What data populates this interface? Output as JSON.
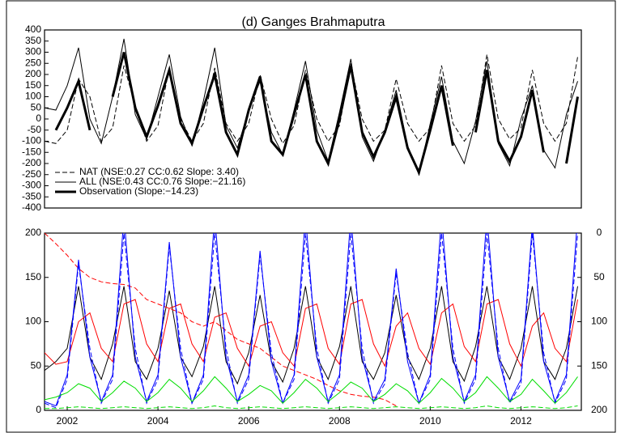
{
  "chart_data": [
    {
      "type": "line",
      "title": "(d) Ganges Brahmaputra",
      "x": [
        2001.5,
        2001.75,
        2002,
        2002.25,
        2002.5,
        2002.75,
        2003,
        2003.25,
        2003.5,
        2003.75,
        2004,
        2004.25,
        2004.5,
        2004.75,
        2005,
        2005.25,
        2005.5,
        2005.75,
        2006,
        2006.25,
        2006.5,
        2006.75,
        2007,
        2007.25,
        2007.5,
        2007.75,
        2008,
        2008.25,
        2008.5,
        2008.75,
        2009,
        2009.25,
        2009.5,
        2009.75,
        2010,
        2010.25,
        2010.5,
        2010.75,
        2011,
        2011.25,
        2011.5,
        2011.75,
        2012,
        2012.25,
        2012.5,
        2012.75,
        2013,
        2013.25
      ],
      "xlim": [
        2001.5,
        2013.33
      ],
      "ylim": [
        -400,
        400
      ],
      "yticks": [
        400,
        350,
        300,
        250,
        200,
        150,
        100,
        50,
        0,
        -50,
        -100,
        -150,
        -200,
        -250,
        -300,
        -350,
        -400
      ],
      "series": [
        {
          "name": "NAT (NSE:0.27 CC:0.62 Slope:  3.40)",
          "color": "#000000",
          "style": "dashed",
          "linewidth": 1,
          "values": [
            -100,
            -110,
            -50,
            180,
            100,
            -100,
            -40,
            240,
            60,
            -100,
            -30,
            230,
            0,
            -100,
            -20,
            230,
            -20,
            -100,
            -20,
            200,
            0,
            -110,
            -30,
            220,
            0,
            -100,
            -30,
            250,
            0,
            -100,
            -50,
            180,
            -20,
            -100,
            -40,
            240,
            -20,
            -100,
            -30,
            290,
            0,
            -90,
            -40,
            220,
            -20,
            -100,
            -20,
            280
          ]
        },
        {
          "name": "ALL (NSE:0.43 CC:0.76 Slope:−21.16)",
          "color": "#000000",
          "style": "solid",
          "linewidth": 1,
          "values": [
            50,
            40,
            150,
            320,
            0,
            -110,
            100,
            360,
            20,
            -90,
            100,
            290,
            10,
            -120,
            80,
            320,
            -30,
            -130,
            40,
            170,
            -60,
            -160,
            40,
            260,
            -50,
            -190,
            30,
            270,
            -80,
            -190,
            -50,
            130,
            -120,
            -250,
            -20,
            190,
            -100,
            -200,
            -10,
            260,
            -110,
            -210,
            0,
            150,
            -140,
            -220,
            20,
            170
          ]
        },
        {
          "name": "Observation (Slope:−14.23)",
          "color": "#000000",
          "style": "solid",
          "linewidth": 3,
          "values": [
            null,
            -50,
            50,
            170,
            -50,
            null,
            100,
            300,
            50,
            -80,
            60,
            220,
            -20,
            -110,
            50,
            200,
            -60,
            -160,
            40,
            190,
            -100,
            -160,
            20,
            200,
            -100,
            -200,
            0,
            240,
            -60,
            -170,
            -60,
            100,
            -130,
            -240,
            -50,
            150,
            -120,
            null,
            -60,
            220,
            -100,
            -190,
            -80,
            130,
            -150,
            null,
            -200,
            100
          ]
        }
      ]
    },
    {
      "type": "line",
      "x": [
        2001.5,
        2001.75,
        2002,
        2002.25,
        2002.5,
        2002.75,
        2003,
        2003.25,
        2003.5,
        2003.75,
        2004,
        2004.25,
        2004.5,
        2004.75,
        2005,
        2005.25,
        2005.5,
        2005.75,
        2006,
        2006.25,
        2006.5,
        2006.75,
        2007,
        2007.25,
        2007.5,
        2007.75,
        2008,
        2008.25,
        2008.5,
        2008.75,
        2009,
        2009.25,
        2009.5,
        2009.75,
        2010,
        2010.25,
        2010.5,
        2010.75,
        2011,
        2011.25,
        2011.5,
        2011.75,
        2012,
        2012.25,
        2012.5,
        2012.75,
        2013,
        2013.25
      ],
      "xlim": [
        2001.5,
        2013.33
      ],
      "xticks": [
        2002,
        2004,
        2006,
        2008,
        2010,
        2012
      ],
      "ylim": [
        0,
        200
      ],
      "yticks": [
        0,
        50,
        100,
        150,
        200
      ],
      "y2lim": [
        200,
        0
      ],
      "y2ticks": [
        0,
        50,
        100,
        150,
        200
      ],
      "series": [
        {
          "color": "#000000",
          "style": "solid",
          "linewidth": 1,
          "values": [
            45,
            55,
            70,
            140,
            60,
            35,
            75,
            140,
            55,
            35,
            70,
            135,
            60,
            38,
            72,
            140,
            55,
            30,
            65,
            130,
            55,
            32,
            70,
            140,
            60,
            35,
            72,
            140,
            55,
            35,
            65,
            130,
            60,
            35,
            70,
            140,
            55,
            33,
            72,
            140,
            60,
            35,
            70,
            140,
            55,
            35,
            70,
            140
          ]
        },
        {
          "color": "#ff0000",
          "style": "solid",
          "linewidth": 1,
          "values": [
            65,
            52,
            55,
            100,
            110,
            70,
            55,
            120,
            125,
            75,
            55,
            115,
            120,
            75,
            55,
            105,
            110,
            70,
            50,
            95,
            100,
            65,
            50,
            115,
            120,
            70,
            52,
            120,
            125,
            75,
            50,
            95,
            110,
            70,
            52,
            110,
            120,
            72,
            55,
            120,
            125,
            75,
            50,
            95,
            110,
            70,
            55,
            125
          ]
        },
        {
          "color": "#ff0000",
          "style": "dashed",
          "linewidth": 1,
          "values": [
            200,
            188,
            175,
            160,
            150,
            145,
            143,
            142,
            138,
            125,
            120,
            115,
            110,
            100,
            95,
            100,
            90,
            80,
            75,
            70,
            60,
            50,
            45,
            40,
            35,
            28,
            22,
            18,
            16,
            15,
            12,
            5,
            null,
            null,
            null,
            null,
            null,
            null,
            null,
            null,
            null,
            null,
            null,
            null,
            null,
            null,
            null,
            null
          ]
        },
        {
          "color": "#0000ff",
          "style": "solid",
          "linewidth": 1,
          "values": [
            10,
            5,
            40,
            170,
            60,
            10,
            40,
            220,
            60,
            10,
            40,
            190,
            60,
            8,
            40,
            220,
            60,
            10,
            40,
            180,
            55,
            8,
            40,
            220,
            60,
            10,
            40,
            220,
            60,
            10,
            35,
            160,
            55,
            8,
            40,
            220,
            60,
            10,
            40,
            220,
            60,
            10,
            35,
            210,
            55,
            10,
            40,
            220
          ]
        },
        {
          "color": "#0000ff",
          "style": "dashed",
          "linewidth": 1,
          "values": [
            8,
            3,
            35,
            165,
            70,
            8,
            35,
            200,
            70,
            8,
            35,
            185,
            70,
            8,
            35,
            200,
            70,
            8,
            35,
            175,
            65,
            8,
            35,
            200,
            70,
            8,
            35,
            200,
            70,
            8,
            30,
            155,
            65,
            8,
            35,
            200,
            70,
            8,
            35,
            200,
            70,
            8,
            30,
            200,
            65,
            8,
            35,
            200
          ]
        },
        {
          "color": "#00dd00",
          "style": "solid",
          "linewidth": 1,
          "values": [
            12,
            15,
            20,
            30,
            25,
            10,
            20,
            33,
            25,
            10,
            20,
            35,
            25,
            10,
            22,
            38,
            25,
            10,
            18,
            28,
            22,
            8,
            20,
            35,
            25,
            10,
            20,
            32,
            25,
            10,
            18,
            30,
            22,
            8,
            20,
            36,
            25,
            10,
            20,
            38,
            25,
            10,
            18,
            35,
            22,
            8,
            20,
            38
          ]
        },
        {
          "color": "#00dd00",
          "style": "dashed",
          "linewidth": 1,
          "values": [
            2,
            2,
            3,
            4,
            3,
            2,
            3,
            4,
            3,
            2,
            3,
            4,
            3,
            2,
            3,
            5,
            3,
            2,
            3,
            4,
            3,
            2,
            3,
            4,
            3,
            2,
            3,
            4,
            3,
            2,
            3,
            4,
            3,
            2,
            3,
            4,
            3,
            2,
            3,
            5,
            3,
            2,
            3,
            4,
            3,
            2,
            3,
            5
          ]
        }
      ]
    }
  ]
}
